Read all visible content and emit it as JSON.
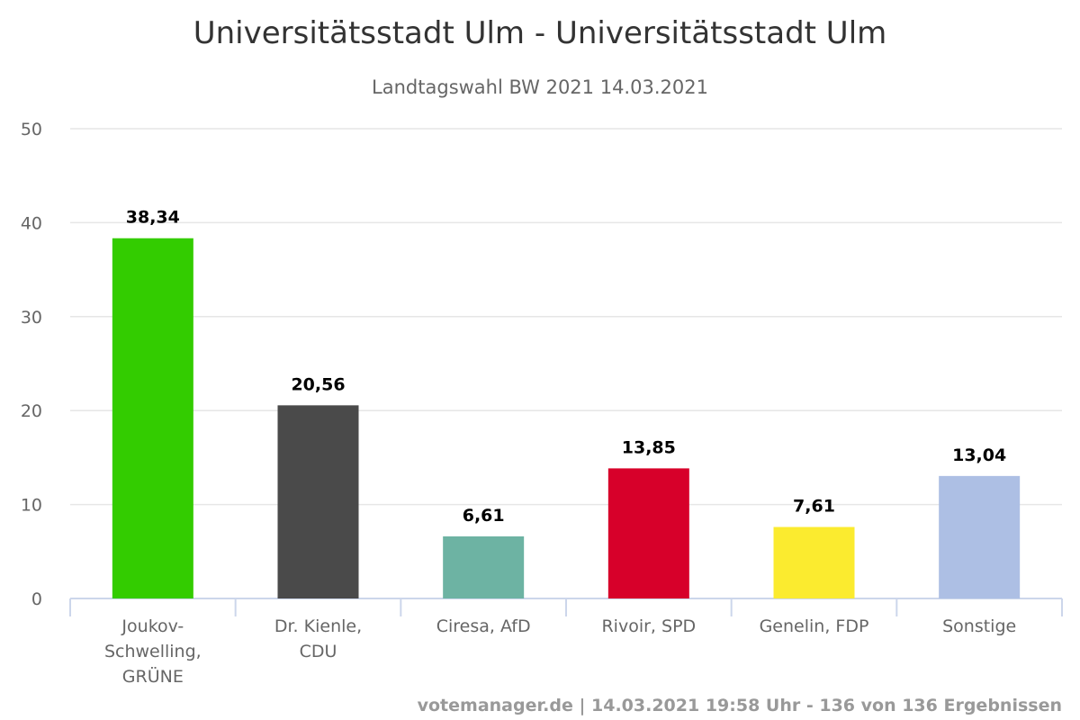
{
  "chart_data": {
    "type": "bar",
    "title": "Universitätsstadt Ulm - Universitätsstadt Ulm",
    "subtitle": "Landtagswahl BW 2021 14.03.2021",
    "xlabel": "",
    "ylabel": "",
    "ylim": [
      0,
      50
    ],
    "yticks": [
      "0",
      "10",
      "20",
      "30",
      "40",
      "50"
    ],
    "grid": true,
    "legend": "none",
    "categories": [
      [
        "Joukov-",
        "Schwelling,",
        "GRÜNE"
      ],
      [
        "Dr. Kienle,",
        "CDU"
      ],
      [
        "Ciresa, AfD"
      ],
      [
        "Rivoir, SPD"
      ],
      [
        "Genelin, FDP"
      ],
      [
        "Sonstige"
      ]
    ],
    "values": [
      38.34,
      20.56,
      6.61,
      13.85,
      7.61,
      13.04
    ],
    "data_labels": [
      "38,34",
      "20,56",
      "6,61",
      "13,85",
      "7,61",
      "13,04"
    ],
    "colors": [
      "#33cc00",
      "#4a4a4a",
      "#6db3a3",
      "#d7002a",
      "#fbeb2f",
      "#adbfe4"
    ],
    "credits": "votemanager.de | 14.03.2021 19:58 Uhr - 136 von 136 Ergebnissen"
  }
}
